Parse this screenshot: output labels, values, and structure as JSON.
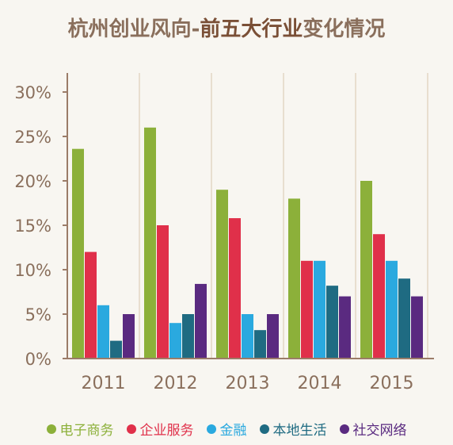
{
  "chart_data": {
    "type": "bar",
    "title_part1": "杭州创业风向-",
    "title_strong": "前五大行业",
    "title_part2": "变化情况",
    "categories": [
      "2011",
      "2012",
      "2013",
      "2014",
      "2015"
    ],
    "series": [
      {
        "name": "电子商务",
        "color": "#8cb03a",
        "values": [
          23.6,
          26,
          19,
          18,
          20
        ]
      },
      {
        "name": "企业服务",
        "color": "#e0304a",
        "values": [
          12,
          15,
          15.8,
          11,
          14
        ]
      },
      {
        "name": "金融",
        "color": "#2aa9df",
        "values": [
          6,
          4,
          5,
          11,
          11
        ]
      },
      {
        "name": "本地生活",
        "color": "#1f6b82",
        "values": [
          2,
          5,
          3.2,
          8.2,
          9
        ]
      },
      {
        "name": "社交网络",
        "color": "#5a2a80",
        "values": [
          5,
          8.4,
          5,
          7,
          7
        ]
      }
    ],
    "yticks": [
      "0%",
      "5%",
      "10%",
      "15%",
      "20%",
      "25%",
      "30%"
    ],
    "ylim": [
      0,
      30
    ],
    "grid": "vertical",
    "legend_position": "bottom"
  }
}
